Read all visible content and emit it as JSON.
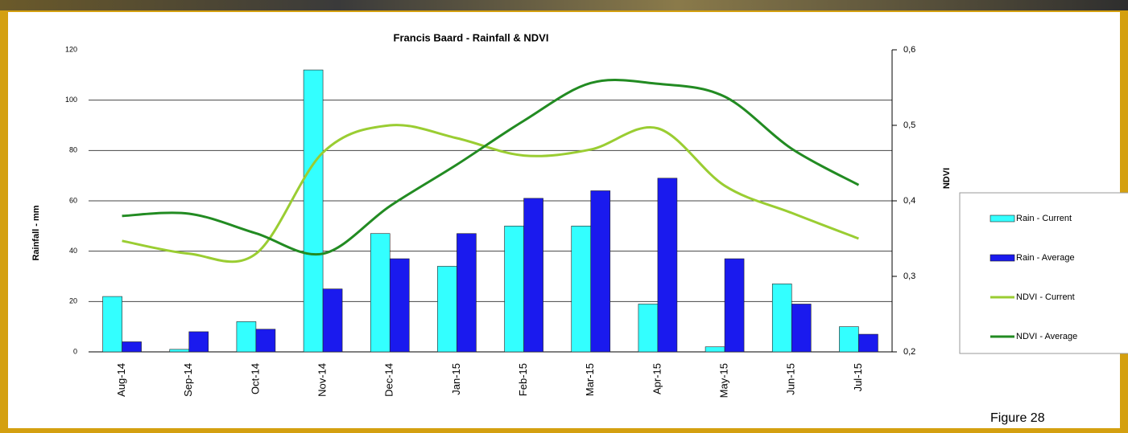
{
  "chart_data": {
    "type": "bar_line",
    "title": "Francis Baard - Rainfall & NDVI",
    "y_label": "Rainfall - mm",
    "y2_label": "NDVI",
    "note": "Figure 28",
    "categories": [
      "Aug-14",
      "Sep-14",
      "Oct-14",
      "Nov-14",
      "Dec-14",
      "Jan-15",
      "Feb-15",
      "Mar-15",
      "Apr-15",
      "May-15",
      "Jun-15",
      "Jul-15"
    ],
    "series": [
      {
        "name": "Rain - Current",
        "type": "bar",
        "color": "#33ffff",
        "values": [
          22,
          1,
          12,
          112,
          47,
          34,
          50,
          50,
          19,
          2,
          27,
          10
        ]
      },
      {
        "name": "Rain - Average",
        "type": "bar",
        "color": "#1a1aee",
        "values": [
          4,
          8,
          9,
          25,
          37,
          47,
          61,
          64,
          69,
          37,
          19,
          7
        ]
      },
      {
        "name": "NDVI - Current",
        "type": "line",
        "axis": "y2",
        "color": "#9acd32",
        "values": [
          0.347,
          0.33,
          0.33,
          0.464,
          0.5,
          0.483,
          0.46,
          0.468,
          0.496,
          0.42,
          0.384,
          0.35
        ]
      },
      {
        "name": "NDVI - Average",
        "type": "line",
        "axis": "y2",
        "color": "#228b22",
        "values": [
          0.38,
          0.383,
          0.357,
          0.33,
          0.393,
          0.448,
          0.506,
          0.556,
          0.555,
          0.538,
          0.469,
          0.421
        ]
      }
    ],
    "ylim": [
      0,
      120
    ],
    "yticks": [
      0,
      20,
      40,
      60,
      80,
      100,
      120
    ],
    "y2lim": [
      0.2,
      0.6
    ],
    "y2ticks": [
      {
        "value": 0.2,
        "label": "0,2"
      },
      {
        "value": 0.3,
        "label": "0,3"
      },
      {
        "value": 0.4,
        "label": "0,4"
      },
      {
        "value": 0.5,
        "label": "0,5"
      },
      {
        "value": 0.6,
        "label": "0,6"
      }
    ],
    "grid": true,
    "legend": "right"
  }
}
